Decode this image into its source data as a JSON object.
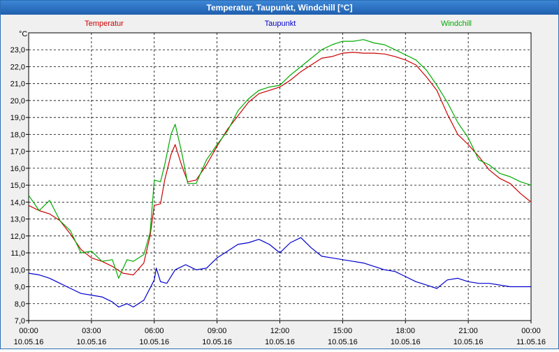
{
  "window": {
    "title": "Temperatur, Taupunkt, Windchill [°C]"
  },
  "colors": {
    "plot_bg": "#ffffff",
    "grid": "#000000",
    "temperatur": "#cc0000",
    "taupunkt": "#0000cc",
    "windchill": "#00aa00",
    "titlebar": "#2569b8"
  },
  "chart_data": {
    "type": "line",
    "title": "Temperatur, Taupunkt, Windchill [°C]",
    "ylabel": "°C",
    "ylim": [
      7.0,
      24.0
    ],
    "yticks": [
      "7,0",
      "8,0",
      "9,0",
      "10,0",
      "11,0",
      "12,0",
      "13,0",
      "14,0",
      "15,0",
      "16,0",
      "17,0",
      "18,0",
      "19,0",
      "20,0",
      "21,0",
      "22,0",
      "23,0"
    ],
    "xlim": [
      0,
      24
    ],
    "xticks": [
      {
        "time": "00:00",
        "date": "10.05.16"
      },
      {
        "time": "03:00",
        "date": "10.05.16"
      },
      {
        "time": "06:00",
        "date": "10.05.16"
      },
      {
        "time": "09:00",
        "date": "10.05.16"
      },
      {
        "time": "12:00",
        "date": "10.05.16"
      },
      {
        "time": "15:00",
        "date": "10.05.16"
      },
      {
        "time": "18:00",
        "date": "10.05.16"
      },
      {
        "time": "21:00",
        "date": "10.05.16"
      },
      {
        "time": "00:00",
        "date": "11.05.16"
      }
    ],
    "grid": true,
    "legend": "top",
    "series": [
      {
        "name": "Temperatur",
        "color": "#cc0000",
        "points": [
          [
            0,
            13.8
          ],
          [
            0.5,
            13.5
          ],
          [
            1,
            13.3
          ],
          [
            1.5,
            12.9
          ],
          [
            2,
            12.1
          ],
          [
            2.5,
            11.2
          ],
          [
            3,
            10.7
          ],
          [
            3.5,
            10.5
          ],
          [
            4,
            10.2
          ],
          [
            4.5,
            9.8
          ],
          [
            5,
            9.7
          ],
          [
            5.5,
            10.4
          ],
          [
            5.8,
            12.0
          ],
          [
            6,
            13.8
          ],
          [
            6.3,
            13.9
          ],
          [
            6.5,
            15.3
          ],
          [
            6.8,
            16.8
          ],
          [
            7,
            17.4
          ],
          [
            7.3,
            16.2
          ],
          [
            7.6,
            15.2
          ],
          [
            8,
            15.3
          ],
          [
            8.5,
            16.2
          ],
          [
            9,
            17.3
          ],
          [
            9.5,
            18.3
          ],
          [
            10,
            19.1
          ],
          [
            10.5,
            19.9
          ],
          [
            11,
            20.4
          ],
          [
            11.5,
            20.6
          ],
          [
            12,
            20.8
          ],
          [
            12.5,
            21.2
          ],
          [
            13,
            21.7
          ],
          [
            13.5,
            22.1
          ],
          [
            14,
            22.5
          ],
          [
            14.5,
            22.6
          ],
          [
            15,
            22.8
          ],
          [
            15.5,
            22.85
          ],
          [
            16,
            22.8
          ],
          [
            16.5,
            22.8
          ],
          [
            17,
            22.75
          ],
          [
            17.5,
            22.6
          ],
          [
            18,
            22.4
          ],
          [
            18.5,
            22.1
          ],
          [
            19,
            21.4
          ],
          [
            19.5,
            20.6
          ],
          [
            20,
            19.2
          ],
          [
            20.5,
            18.0
          ],
          [
            21,
            17.4
          ],
          [
            21.5,
            16.7
          ],
          [
            22,
            15.9
          ],
          [
            22.5,
            15.4
          ],
          [
            23,
            15.1
          ],
          [
            23.5,
            14.5
          ],
          [
            24,
            14.0
          ]
        ]
      },
      {
        "name": "Taupunkt",
        "color": "#0000cc",
        "points": [
          [
            0,
            9.8
          ],
          [
            0.5,
            9.7
          ],
          [
            1,
            9.5
          ],
          [
            1.5,
            9.2
          ],
          [
            2,
            8.9
          ],
          [
            2.5,
            8.6
          ],
          [
            3,
            8.5
          ],
          [
            3.5,
            8.4
          ],
          [
            4,
            8.1
          ],
          [
            4.3,
            7.8
          ],
          [
            4.7,
            8.0
          ],
          [
            5,
            7.8
          ],
          [
            5.5,
            8.2
          ],
          [
            6,
            9.4
          ],
          [
            6.1,
            10.1
          ],
          [
            6.3,
            9.3
          ],
          [
            6.6,
            9.2
          ],
          [
            7,
            10.0
          ],
          [
            7.5,
            10.3
          ],
          [
            8,
            10.0
          ],
          [
            8.5,
            10.1
          ],
          [
            9,
            10.7
          ],
          [
            9.5,
            11.1
          ],
          [
            10,
            11.5
          ],
          [
            10.5,
            11.6
          ],
          [
            11,
            11.8
          ],
          [
            11.5,
            11.5
          ],
          [
            12,
            11.0
          ],
          [
            12.5,
            11.6
          ],
          [
            13,
            11.9
          ],
          [
            13.5,
            11.3
          ],
          [
            14,
            10.8
          ],
          [
            14.5,
            10.7
          ],
          [
            15,
            10.6
          ],
          [
            15.5,
            10.5
          ],
          [
            16,
            10.4
          ],
          [
            16.5,
            10.2
          ],
          [
            17,
            10.0
          ],
          [
            17.5,
            9.9
          ],
          [
            18,
            9.6
          ],
          [
            18.5,
            9.3
          ],
          [
            19,
            9.1
          ],
          [
            19.5,
            8.9
          ],
          [
            20,
            9.4
          ],
          [
            20.5,
            9.5
          ],
          [
            21,
            9.3
          ],
          [
            21.5,
            9.2
          ],
          [
            22,
            9.2
          ],
          [
            22.5,
            9.1
          ],
          [
            23,
            9.0
          ],
          [
            23.5,
            9.0
          ],
          [
            24,
            9.0
          ]
        ]
      },
      {
        "name": "Windchill",
        "color": "#00aa00",
        "points": [
          [
            0,
            14.4
          ],
          [
            0.5,
            13.5
          ],
          [
            1,
            14.1
          ],
          [
            1.5,
            12.9
          ],
          [
            2,
            12.3
          ],
          [
            2.5,
            11.0
          ],
          [
            3,
            11.1
          ],
          [
            3.5,
            10.5
          ],
          [
            4,
            10.6
          ],
          [
            4.3,
            9.5
          ],
          [
            4.7,
            10.6
          ],
          [
            5,
            10.5
          ],
          [
            5.5,
            10.9
          ],
          [
            5.8,
            12.2
          ],
          [
            6,
            15.3
          ],
          [
            6.3,
            15.2
          ],
          [
            6.5,
            16.2
          ],
          [
            6.8,
            18.0
          ],
          [
            7,
            18.6
          ],
          [
            7.3,
            17.0
          ],
          [
            7.6,
            15.1
          ],
          [
            8,
            15.1
          ],
          [
            8.5,
            16.5
          ],
          [
            9,
            17.4
          ],
          [
            9.5,
            18.2
          ],
          [
            10,
            19.4
          ],
          [
            10.5,
            20.1
          ],
          [
            11,
            20.6
          ],
          [
            11.5,
            20.8
          ],
          [
            12,
            20.9
          ],
          [
            12.5,
            21.5
          ],
          [
            13,
            22.0
          ],
          [
            13.5,
            22.5
          ],
          [
            14,
            23.0
          ],
          [
            14.5,
            23.3
          ],
          [
            15,
            23.5
          ],
          [
            15.5,
            23.5
          ],
          [
            16,
            23.6
          ],
          [
            16.5,
            23.4
          ],
          [
            17,
            23.3
          ],
          [
            17.5,
            23.0
          ],
          [
            18,
            22.7
          ],
          [
            18.5,
            22.4
          ],
          [
            19,
            21.8
          ],
          [
            19.5,
            20.9
          ],
          [
            20,
            19.9
          ],
          [
            20.5,
            18.7
          ],
          [
            21,
            17.8
          ],
          [
            21.5,
            16.5
          ],
          [
            22,
            16.2
          ],
          [
            22.5,
            15.7
          ],
          [
            23,
            15.5
          ],
          [
            23.5,
            15.2
          ],
          [
            24,
            15.0
          ]
        ]
      }
    ]
  }
}
